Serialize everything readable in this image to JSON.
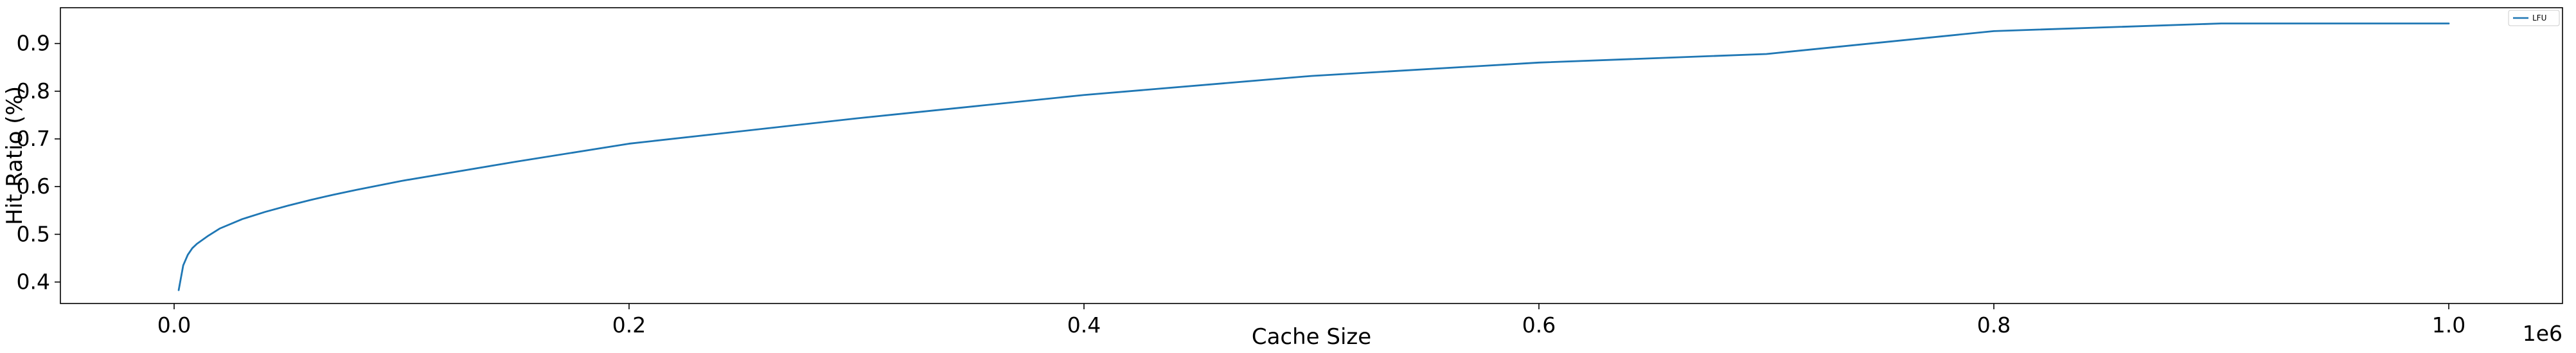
{
  "chart_data": {
    "type": "line",
    "xlabel": "Cache Size",
    "ylabel": "Hit Ratio (%)",
    "x_offset_label": "1e6",
    "xlim": [
      -50000,
      1050000
    ],
    "ylim": [
      0.355,
      0.975
    ],
    "x_ticks": [
      {
        "value": 0,
        "label": "0.0"
      },
      {
        "value": 200000,
        "label": "0.2"
      },
      {
        "value": 400000,
        "label": "0.4"
      },
      {
        "value": 600000,
        "label": "0.6"
      },
      {
        "value": 800000,
        "label": "0.8"
      },
      {
        "value": 1000000,
        "label": "1.0"
      }
    ],
    "y_ticks": [
      {
        "value": 0.4,
        "label": "0.4"
      },
      {
        "value": 0.5,
        "label": "0.5"
      },
      {
        "value": 0.6,
        "label": "0.6"
      },
      {
        "value": 0.7,
        "label": "0.7"
      },
      {
        "value": 0.8,
        "label": "0.8"
      },
      {
        "value": 0.9,
        "label": "0.9"
      }
    ],
    "grid": false,
    "legend_position": "top-right",
    "series": [
      {
        "name": "LFU",
        "color": "#1f77b4",
        "x": [
          2000,
          4000,
          6000,
          8000,
          10000,
          15000,
          20000,
          30000,
          40000,
          50000,
          60000,
          70000,
          80000,
          100000,
          150000,
          200000,
          300000,
          400000,
          500000,
          600000,
          700000,
          800000,
          900000,
          1000000
        ],
        "y": [
          0.383,
          0.435,
          0.457,
          0.471,
          0.48,
          0.497,
          0.512,
          0.532,
          0.547,
          0.56,
          0.572,
          0.583,
          0.593,
          0.612,
          0.652,
          0.69,
          0.743,
          0.792,
          0.832,
          0.86,
          0.878,
          0.926,
          0.942,
          0.942
        ]
      }
    ]
  }
}
